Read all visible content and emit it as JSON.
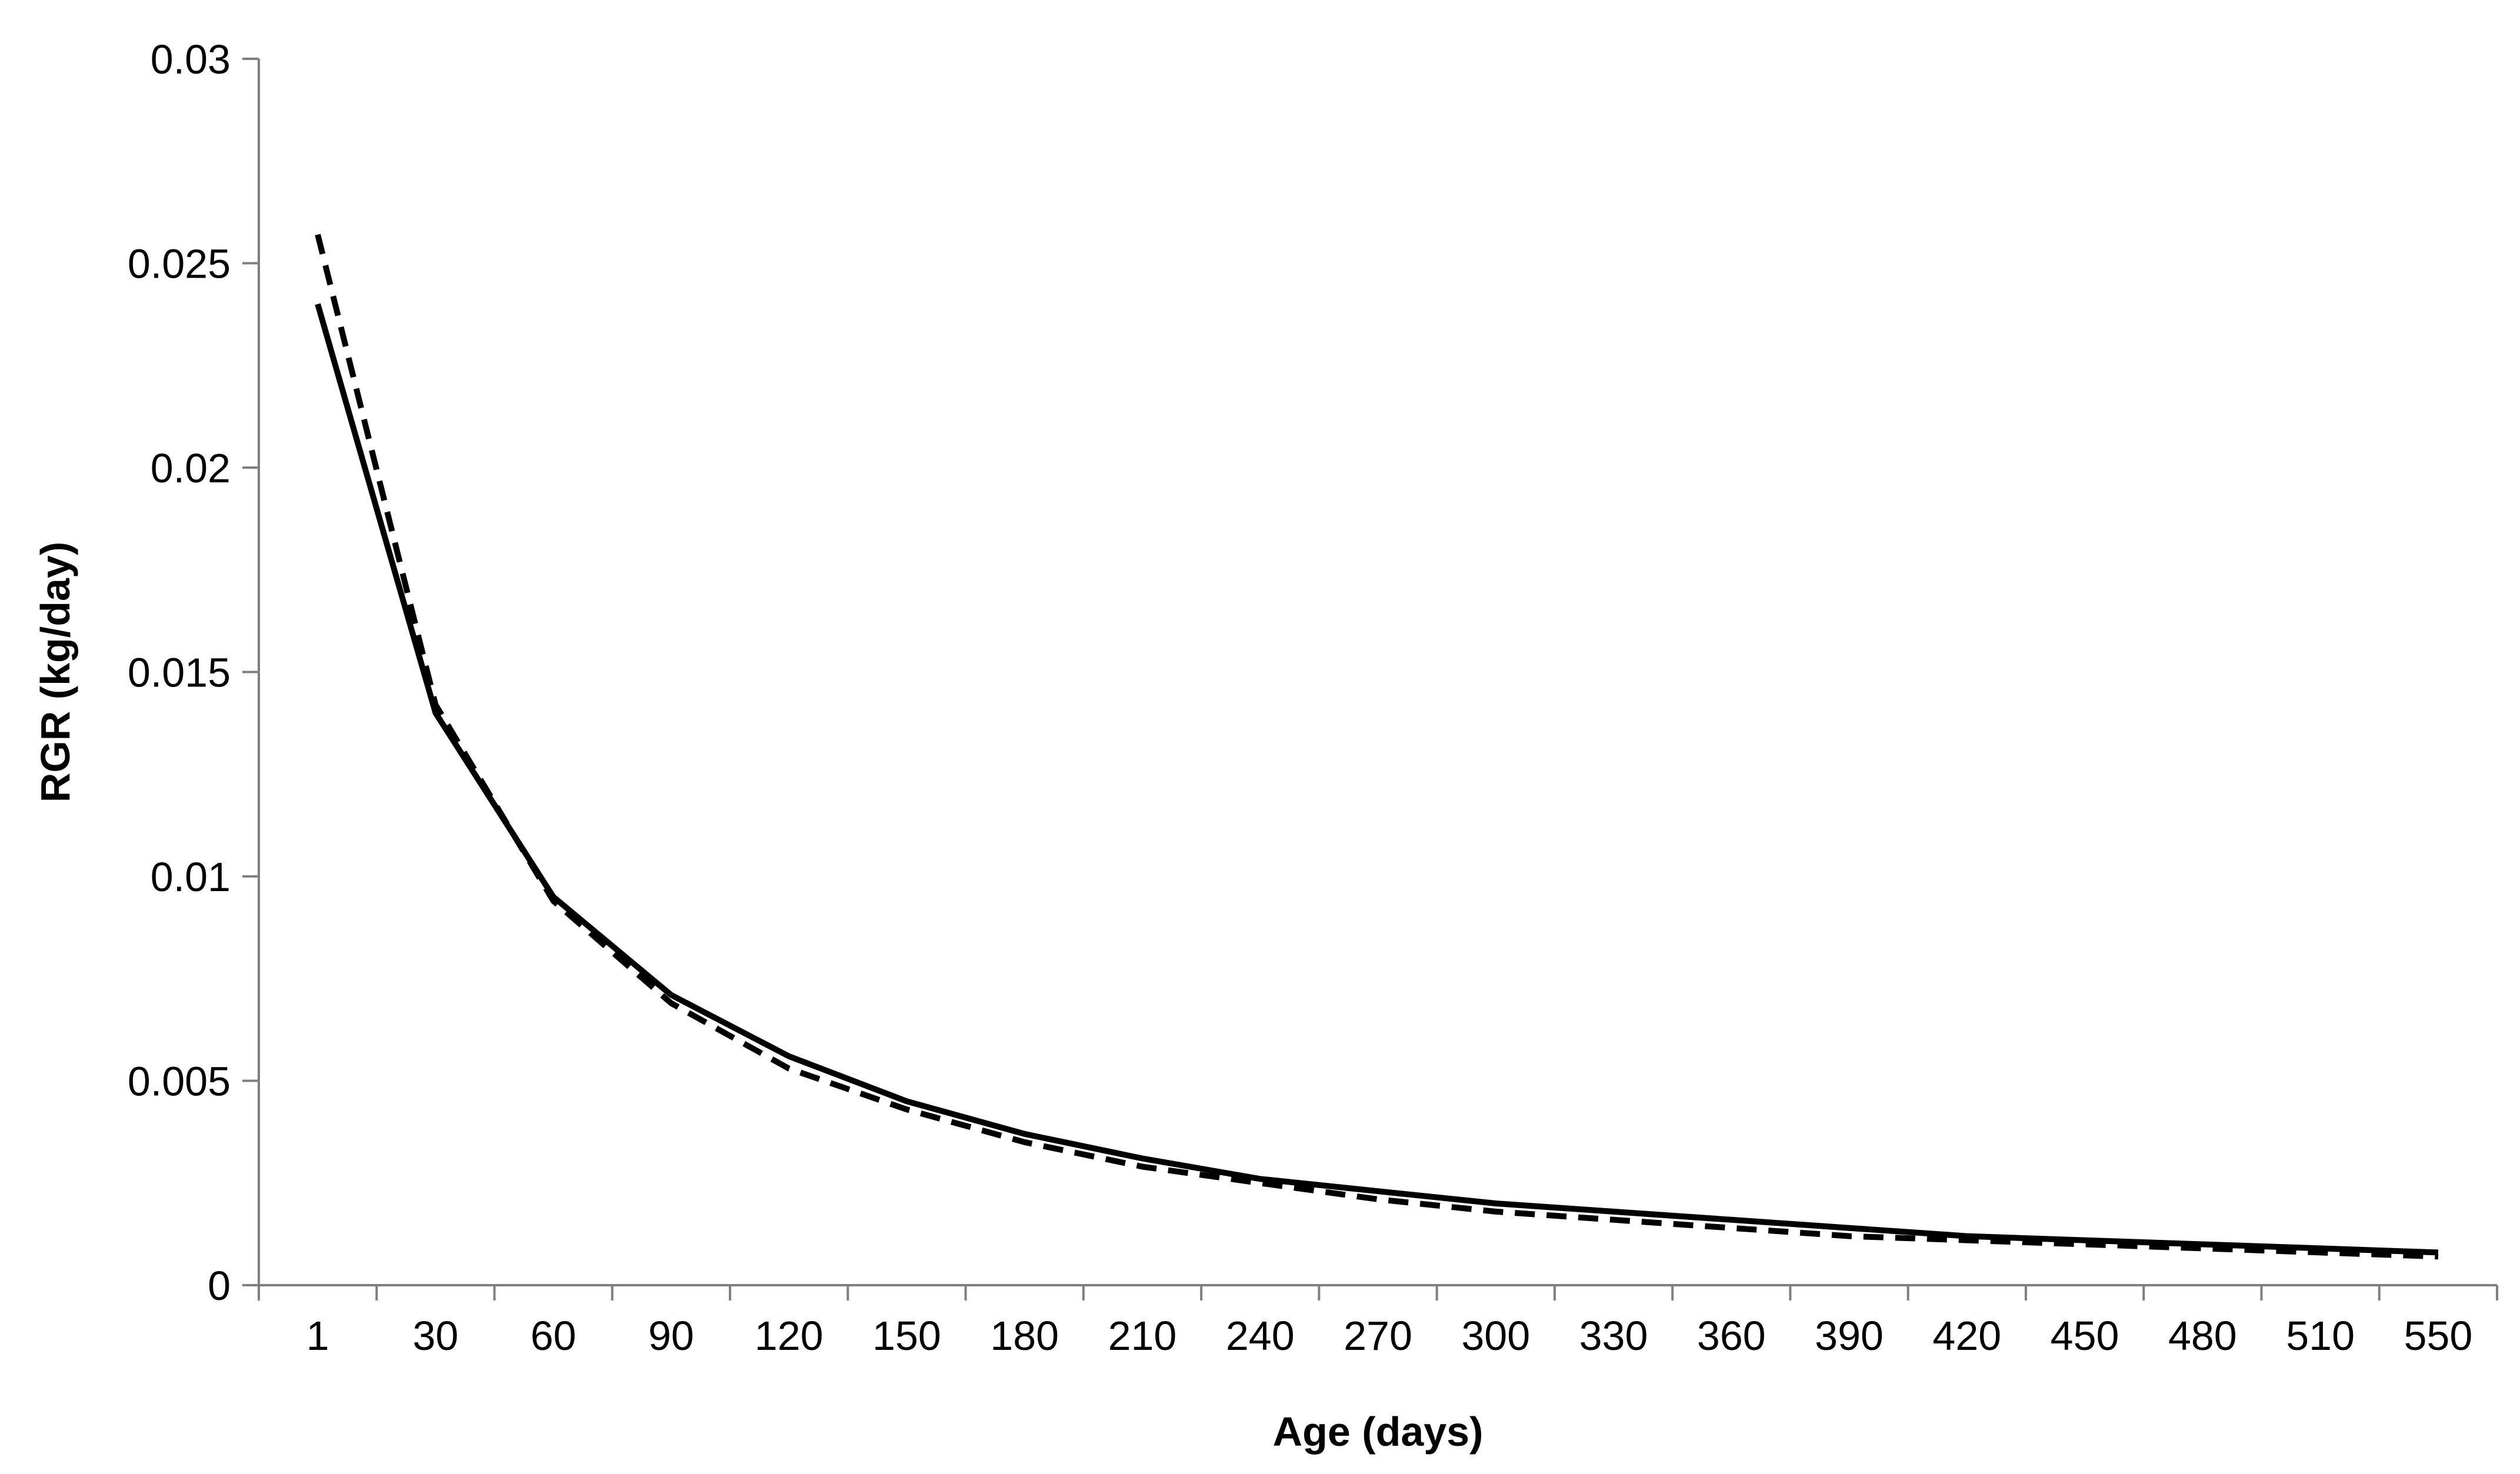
{
  "chart_data": {
    "type": "line",
    "title": "",
    "xlabel": "Age (days)",
    "ylabel": "RGR (kg/day)",
    "categories": [
      "1",
      "30",
      "60",
      "90",
      "120",
      "150",
      "180",
      "210",
      "240",
      "270",
      "300",
      "330",
      "360",
      "390",
      "420",
      "450",
      "480",
      "510",
      "550"
    ],
    "ylim": [
      0,
      0.03
    ],
    "yticks": [
      "0",
      "0.005",
      "0.01",
      "0.015",
      "0.02",
      "0.025",
      "0.03"
    ],
    "grid": false,
    "legend": "none",
    "series": [
      {
        "style": "solid",
        "color": "#000000",
        "values": [
          0.024,
          0.014,
          0.0095,
          0.0071,
          0.0056,
          0.0045,
          0.0037,
          0.0031,
          0.0026,
          0.0023,
          0.002,
          0.0018,
          0.0016,
          0.0014,
          0.0012,
          0.0011,
          0.001,
          0.0009,
          0.0008
        ]
      },
      {
        "style": "dashed",
        "color": "#000000",
        "values": [
          0.0257,
          0.0142,
          0.0094,
          0.0069,
          0.0053,
          0.0043,
          0.0035,
          0.0029,
          0.0025,
          0.0021,
          0.0018,
          0.0016,
          0.0014,
          0.0012,
          0.0011,
          0.001,
          0.0009,
          0.0008,
          0.0007
        ]
      }
    ]
  }
}
